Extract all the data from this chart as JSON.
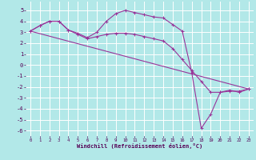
{
  "xlabel": "Windchill (Refroidissement éolien,°C)",
  "bg_color": "#b2e8e8",
  "grid_color": "#ffffff",
  "line_color": "#993399",
  "xlim": [
    -0.5,
    23.5
  ],
  "ylim": [
    -6.5,
    5.8
  ],
  "xticks": [
    0,
    1,
    2,
    3,
    4,
    5,
    6,
    7,
    8,
    9,
    10,
    11,
    12,
    13,
    14,
    15,
    16,
    17,
    18,
    19,
    20,
    21,
    22,
    23
  ],
  "yticks": [
    -6,
    -5,
    -4,
    -3,
    -2,
    -1,
    0,
    1,
    2,
    3,
    4,
    5
  ],
  "series1_x": [
    0,
    1,
    2,
    3,
    4,
    5,
    6,
    7,
    8,
    9,
    10,
    11,
    12,
    13,
    14,
    15,
    16,
    17,
    18,
    19,
    20,
    21,
    22,
    23
  ],
  "series1_y": [
    3.1,
    3.6,
    4.0,
    4.0,
    3.2,
    2.9,
    2.5,
    3.0,
    4.0,
    4.7,
    5.0,
    4.8,
    4.6,
    4.4,
    4.3,
    3.7,
    3.1,
    -0.7,
    -5.8,
    -4.5,
    -2.5,
    -2.3,
    -2.5,
    -2.2
  ],
  "series2_x": [
    0,
    1,
    2,
    3,
    4,
    5,
    6,
    7,
    8,
    9,
    10,
    11,
    12,
    13,
    14,
    15,
    16,
    17,
    18,
    19,
    20,
    21,
    22,
    23
  ],
  "series2_y": [
    3.1,
    3.6,
    4.0,
    4.0,
    3.2,
    2.8,
    2.4,
    2.6,
    2.8,
    2.9,
    2.9,
    2.8,
    2.6,
    2.4,
    2.2,
    1.5,
    0.5,
    -0.5,
    -1.5,
    -2.5,
    -2.5,
    -2.4,
    -2.4,
    -2.2
  ],
  "series3_x": [
    0,
    23
  ],
  "series3_y": [
    3.1,
    -2.2
  ],
  "marker_size": 2.5,
  "line_width": 0.8,
  "xlabel_fontsize": 5.0,
  "tick_fontsize_x": 4.0,
  "tick_fontsize_y": 5.0
}
